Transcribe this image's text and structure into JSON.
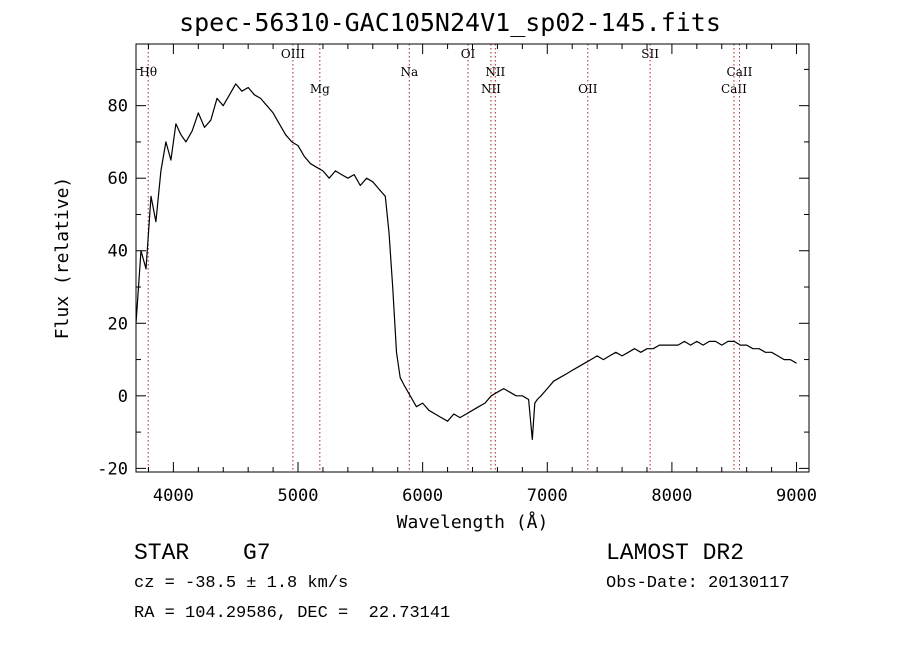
{
  "chart_data": {
    "type": "line",
    "title": "spec-56310-GAC105N24V1_sp02-145.fits",
    "xlabel": "Wavelength (Å)",
    "ylabel": "Flux (relative)",
    "xlim": [
      3700,
      9100
    ],
    "ylim": [
      -21,
      97
    ],
    "xticks": [
      4000,
      5000,
      6000,
      7000,
      8000,
      9000
    ],
    "yticks": [
      -20,
      0,
      20,
      40,
      60,
      80
    ],
    "grid": false,
    "series": [
      {
        "x": [
          3700,
          3740,
          3780,
          3820,
          3860,
          3900,
          3940,
          3980,
          4020,
          4060,
          4100,
          4150,
          4200,
          4250,
          4300,
          4350,
          4400,
          4450,
          4500,
          4550,
          4600,
          4650,
          4700,
          4750,
          4800,
          4850,
          4900,
          4950,
          5000,
          5050,
          5100,
          5150,
          5200,
          5250,
          5300,
          5350,
          5400,
          5450,
          5500,
          5550,
          5600,
          5650,
          5700,
          5730,
          5760,
          5790,
          5820,
          5850,
          5900,
          5950,
          6000,
          6050,
          6100,
          6150,
          6200,
          6250,
          6300,
          6350,
          6400,
          6450,
          6500,
          6550,
          6600,
          6650,
          6700,
          6750,
          6800,
          6850,
          6880,
          6900,
          6920,
          6950,
          7000,
          7050,
          7100,
          7150,
          7200,
          7250,
          7300,
          7350,
          7400,
          7450,
          7500,
          7550,
          7600,
          7650,
          7700,
          7750,
          7800,
          7850,
          7900,
          7950,
          8000,
          8050,
          8100,
          8150,
          8200,
          8250,
          8300,
          8350,
          8400,
          8450,
          8500,
          8550,
          8600,
          8650,
          8700,
          8750,
          8800,
          8850,
          8900,
          8950,
          9000
        ],
        "y": [
          20,
          40,
          35,
          55,
          48,
          62,
          70,
          65,
          75,
          72,
          70,
          73,
          78,
          74,
          76,
          82,
          80,
          83,
          86,
          84,
          85,
          83,
          82,
          80,
          78,
          75,
          72,
          70,
          69,
          66,
          64,
          63,
          62,
          60,
          62,
          61,
          60,
          61,
          58,
          60,
          59,
          57,
          55,
          45,
          30,
          12,
          5,
          3,
          0,
          -3,
          -2,
          -4,
          -5,
          -6,
          -7,
          -5,
          -6,
          -5,
          -4,
          -3,
          -2,
          0,
          1,
          2,
          1,
          0,
          0,
          -1,
          -12,
          -2,
          -1,
          0,
          2,
          4,
          5,
          6,
          7,
          8,
          9,
          10,
          11,
          10,
          11,
          12,
          11,
          12,
          13,
          12,
          13,
          13,
          14,
          14,
          14,
          14,
          15,
          14,
          15,
          14,
          15,
          15,
          14,
          15,
          15,
          14,
          14,
          13,
          13,
          12,
          12,
          11,
          10,
          10,
          9
        ]
      }
    ],
    "lines": [
      {
        "label": "Hθ",
        "x": 3798,
        "row": 1
      },
      {
        "label": "OIII",
        "x": 4959,
        "row": 0
      },
      {
        "label": "Mg",
        "x": 5175,
        "row": 2
      },
      {
        "label": "Na",
        "x": 5893,
        "row": 1
      },
      {
        "label": "OI",
        "x": 6364,
        "row": 0
      },
      {
        "label": "NII",
        "x": 6548,
        "row": 2
      },
      {
        "label": "NII",
        "x": 6583,
        "row": 1
      },
      {
        "label": "OII",
        "x": 7325,
        "row": 2
      },
      {
        "label": "SII",
        "x": 7825,
        "row": 0
      },
      {
        "label": "CaII",
        "x": 8498,
        "row": 2
      },
      {
        "label": "CaII",
        "x": 8542,
        "row": 1
      }
    ]
  },
  "info": {
    "object_class": "STAR",
    "subclass": "G7",
    "survey": "LAMOST DR2",
    "cz": "cz = -38.5 ± 1.8 km/s",
    "obs_date": "Obs-Date: 20130117",
    "coords": "RA = 104.29586, DEC =  22.73141"
  }
}
